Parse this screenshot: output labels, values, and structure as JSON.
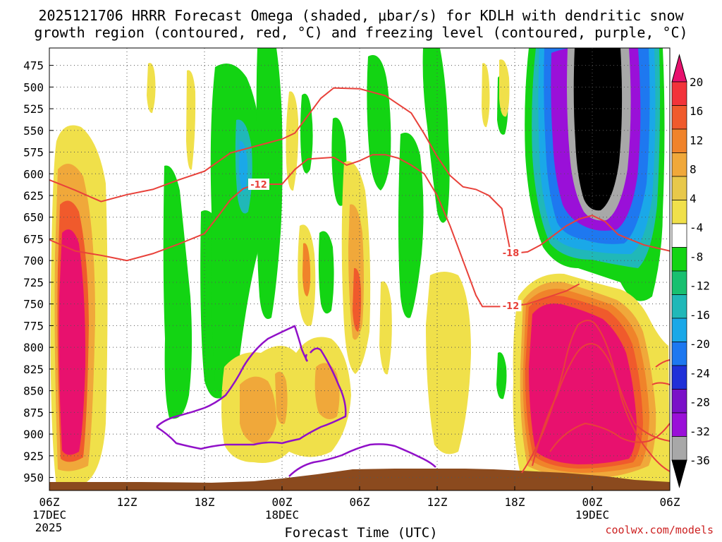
{
  "chart_data": {
    "type": "heatmap",
    "title_line1": "2025121706 HRRR Forecast Omega (shaded, μbar/s) for KDLH with dendritic snow",
    "title_line2": "growth region (contoured, red, °C) and freezing level (contoured, purple, °C)",
    "xlabel": "Forecast Time (UTC)",
    "credit": "coolwx.com/models",
    "x_hours_range": [
      0,
      48
    ],
    "x_ticks": [
      {
        "hour": 0,
        "label": "06Z",
        "sub1": "17DEC",
        "sub2": "2025"
      },
      {
        "hour": 6,
        "label": "12Z",
        "sub1": "",
        "sub2": ""
      },
      {
        "hour": 12,
        "label": "18Z",
        "sub1": "",
        "sub2": ""
      },
      {
        "hour": 18,
        "label": "00Z",
        "sub1": "18DEC",
        "sub2": ""
      },
      {
        "hour": 24,
        "label": "06Z",
        "sub1": "",
        "sub2": ""
      },
      {
        "hour": 30,
        "label": "12Z",
        "sub1": "",
        "sub2": ""
      },
      {
        "hour": 36,
        "label": "18Z",
        "sub1": "",
        "sub2": ""
      },
      {
        "hour": 42,
        "label": "00Z",
        "sub1": "19DEC",
        "sub2": ""
      },
      {
        "hour": 48,
        "label": "06Z",
        "sub1": "",
        "sub2": ""
      }
    ],
    "y_ticks": [
      475,
      500,
      525,
      550,
      575,
      600,
      625,
      650,
      675,
      700,
      725,
      750,
      775,
      800,
      825,
      850,
      875,
      900,
      925,
      950
    ],
    "y_range": [
      455,
      965
    ],
    "grid": true,
    "colorbar": {
      "labels": [
        "20",
        "16",
        "12",
        "8",
        "4",
        "-4",
        "-8",
        "-12",
        "-16",
        "-20",
        "-24",
        "-28",
        "-32",
        "-36"
      ],
      "colors_top_to_bottom": [
        "#e8116e",
        "#f2333a",
        "#f05a2c",
        "#f0832a",
        "#f0a83a",
        "#e8c84a",
        "#f0e04a",
        "#ffffff",
        "#13d413",
        "#18c070",
        "#20b8b8",
        "#1aa8e8",
        "#1e78f0",
        "#2030d8",
        "#7a10c8",
        "#9a10d8",
        "#a8a8a8",
        "#000000"
      ]
    },
    "contour_labels": [
      {
        "text": "-12",
        "hour": 16.2,
        "p": 612
      },
      {
        "text": "-18",
        "hour": 35.7,
        "p": 691
      },
      {
        "text": "-12",
        "hour": 35.7,
        "p": 752
      }
    ],
    "colors": {
      "ground": "#8b4a1e",
      "dgz_contour": "#e8413a",
      "freezing_contour": "#9010c8"
    },
    "series": [
      {
        "name": "red contour A",
        "points": [
          [
            0,
            607
          ],
          [
            2,
            619
          ],
          [
            4,
            632
          ],
          [
            6,
            624
          ],
          [
            8,
            618
          ],
          [
            10,
            607
          ],
          [
            12,
            597
          ],
          [
            14,
            576
          ],
          [
            16,
            568
          ],
          [
            18,
            560
          ],
          [
            19,
            553
          ],
          [
            20,
            533
          ],
          [
            21,
            513
          ],
          [
            22,
            501
          ],
          [
            24,
            502
          ],
          [
            26,
            510
          ],
          [
            28,
            530
          ],
          [
            29,
            554
          ],
          [
            30,
            580
          ],
          [
            31,
            602
          ],
          [
            32,
            615
          ],
          [
            33,
            618
          ],
          [
            34,
            625
          ],
          [
            35,
            640
          ],
          [
            35.7,
            692
          ],
          [
            37,
            690
          ],
          [
            38,
            682
          ],
          [
            39,
            671
          ],
          [
            40,
            660
          ],
          [
            41,
            652
          ],
          [
            42,
            648
          ],
          [
            43,
            655
          ],
          [
            44,
            670
          ],
          [
            46,
            682
          ],
          [
            48,
            689
          ]
        ]
      },
      {
        "name": "red contour B",
        "points": [
          [
            0,
            676
          ],
          [
            2,
            689
          ],
          [
            4,
            694
          ],
          [
            5,
            697
          ],
          [
            6,
            700
          ],
          [
            8,
            692
          ],
          [
            10,
            681
          ],
          [
            12,
            669
          ],
          [
            13,
            650
          ],
          [
            14,
            630
          ],
          [
            15,
            617
          ],
          [
            16,
            612
          ],
          [
            18,
            612
          ],
          [
            19,
            595
          ],
          [
            20,
            583
          ],
          [
            22,
            581
          ],
          [
            23,
            590
          ],
          [
            24,
            585
          ],
          [
            25,
            578
          ],
          [
            26,
            578
          ],
          [
            27,
            582
          ],
          [
            28,
            590
          ],
          [
            29,
            600
          ],
          [
            30,
            625
          ],
          [
            31,
            660
          ],
          [
            32,
            700
          ],
          [
            33,
            740
          ],
          [
            33.5,
            753
          ],
          [
            35.7,
            753
          ],
          [
            37,
            750
          ],
          [
            38,
            745
          ],
          [
            39,
            740
          ],
          [
            40,
            735
          ],
          [
            41,
            727
          ]
        ]
      }
    ]
  }
}
